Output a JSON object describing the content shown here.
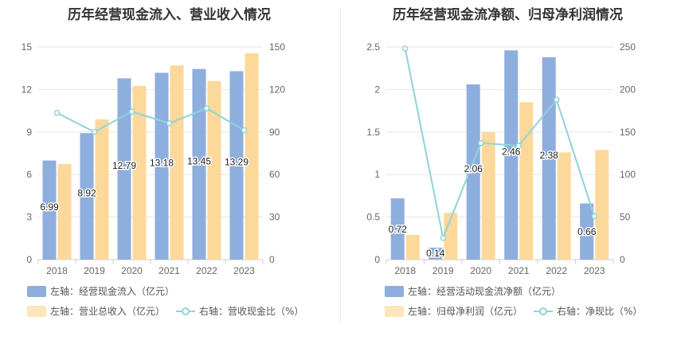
{
  "chart_data": [
    {
      "type": "bar",
      "title": "历年经营现金流入、营业收入情况",
      "categories": [
        "2018",
        "2019",
        "2020",
        "2021",
        "2022",
        "2023"
      ],
      "left_axis": {
        "ylim": [
          0,
          15
        ],
        "ticks": [
          "0",
          "3",
          "6",
          "9",
          "12",
          "15"
        ]
      },
      "right_axis": {
        "ylim": [
          0,
          150
        ],
        "ticks": [
          "0",
          "30",
          "60",
          "90",
          "120",
          "150"
        ]
      },
      "series": [
        {
          "name": "左轴：经营现金流入（亿元）",
          "kind": "bar",
          "axis": "left",
          "color": "#8eaedd",
          "values": [
            6.99,
            8.92,
            12.79,
            13.18,
            13.45,
            13.29
          ],
          "labels": [
            "6.99",
            "8.92",
            "12.79",
            "13.18",
            "13.45",
            "13.29"
          ]
        },
        {
          "name": "左轴：营业总收入（亿元）",
          "kind": "bar",
          "axis": "left",
          "color": "#fcd99a",
          "values": [
            6.75,
            9.9,
            12.25,
            13.7,
            12.6,
            14.55
          ]
        },
        {
          "name": "右轴：营收现金比（%）",
          "kind": "line",
          "axis": "right",
          "color": "#8fd3d9",
          "values": [
            103.5,
            90.1,
            104.4,
            96.2,
            106.7,
            91.3
          ]
        }
      ],
      "grid": true,
      "legend_position": "bottom-left"
    },
    {
      "type": "bar",
      "title": "历年经营现金流净额、归母净利润情况",
      "categories": [
        "2018",
        "2019",
        "2020",
        "2021",
        "2022",
        "2023"
      ],
      "left_axis": {
        "ylim": [
          0,
          2.5
        ],
        "ticks": [
          "0",
          "0.5",
          "1",
          "1.5",
          "2",
          "2.5"
        ]
      },
      "right_axis": {
        "ylim": [
          0,
          250
        ],
        "ticks": [
          "0",
          "50",
          "100",
          "150",
          "200",
          "250"
        ]
      },
      "series": [
        {
          "name": "左轴：经营活动现金流净额（亿元）",
          "kind": "bar",
          "axis": "left",
          "color": "#8eaedd",
          "values": [
            0.72,
            0.14,
            2.06,
            2.46,
            2.38,
            0.66
          ],
          "labels": [
            "0.72",
            "0.14",
            "2.06",
            "2.46",
            "2.38",
            "0.66"
          ]
        },
        {
          "name": "左轴：归母净利润（亿元）",
          "kind": "bar",
          "axis": "left",
          "color": "#fcd99a",
          "values": [
            0.29,
            0.55,
            1.5,
            1.85,
            1.26,
            1.29
          ]
        },
        {
          "name": "右轴：净现比（%）",
          "kind": "line",
          "axis": "right",
          "color": "#8fd3d9",
          "values": [
            248,
            25.5,
            137,
            134,
            188,
            51
          ]
        }
      ],
      "grid": true,
      "legend_position": "bottom-left"
    }
  ]
}
